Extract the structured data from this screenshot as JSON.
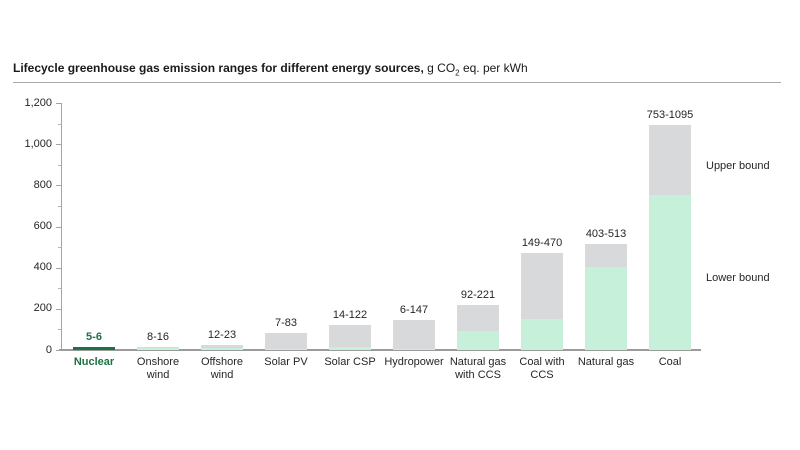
{
  "title": {
    "main": "Lifecycle greenhouse gas emission ranges for different energy sources,",
    "unit_pre": " g CO",
    "unit_sub": "2",
    "unit_post": " eq. per kWh"
  },
  "chart_data": {
    "type": "bar",
    "stacked": true,
    "title": "Lifecycle greenhouse gas emission ranges for different energy sources",
    "ylabel": "g CO2 eq. per kWh",
    "ylim": [
      0,
      1200
    ],
    "yticks": [
      0,
      200,
      400,
      600,
      800,
      1000,
      1200
    ],
    "ytick_labels": [
      "0",
      "200",
      "400",
      "600",
      "800",
      "1,000",
      "1,200"
    ],
    "minor_ticks": [
      100,
      300,
      500,
      700,
      900,
      1100
    ],
    "grid": false,
    "legend": {
      "upper": "Upper bound",
      "lower": "Lower bound",
      "position": "right"
    },
    "categories": [
      {
        "label": "Nuclear",
        "lines": [
          "Nuclear"
        ],
        "lower": 5,
        "upper": 6,
        "range_label": "5-6",
        "highlight": true
      },
      {
        "label": "Onshore wind",
        "lines": [
          "Onshore",
          "wind"
        ],
        "lower": 8,
        "upper": 16,
        "range_label": "8-16",
        "highlight": false
      },
      {
        "label": "Offshore wind",
        "lines": [
          "Offshore",
          "wind"
        ],
        "lower": 12,
        "upper": 23,
        "range_label": "12-23",
        "highlight": false
      },
      {
        "label": "Solar PV",
        "lines": [
          "Solar PV"
        ],
        "lower": 7,
        "upper": 83,
        "range_label": "7-83",
        "highlight": false
      },
      {
        "label": "Solar CSP",
        "lines": [
          "Solar CSP"
        ],
        "lower": 14,
        "upper": 122,
        "range_label": "14-122",
        "highlight": false
      },
      {
        "label": "Hydropower",
        "lines": [
          "Hydropower"
        ],
        "lower": 6,
        "upper": 147,
        "range_label": "6-147",
        "highlight": false
      },
      {
        "label": "Natural gas with CCS",
        "lines": [
          "Natural gas",
          "with CCS"
        ],
        "lower": 92,
        "upper": 221,
        "range_label": "92-221",
        "highlight": false
      },
      {
        "label": "Coal with CCS",
        "lines": [
          "Coal with",
          "CCS"
        ],
        "lower": 149,
        "upper": 470,
        "range_label": "149-470",
        "highlight": false
      },
      {
        "label": "Natural gas",
        "lines": [
          "Natural gas"
        ],
        "lower": 403,
        "upper": 513,
        "range_label": "403-513",
        "highlight": false
      },
      {
        "label": "Coal",
        "lines": [
          "Coal"
        ],
        "lower": 753,
        "upper": 1095,
        "range_label": "753-1095",
        "highlight": false
      }
    ],
    "colors": {
      "lower_fill": "#c6f0d9",
      "upper_fill": "#d7d9da",
      "highlight_fill": "#1e7145",
      "highlight_text": "#1e7145",
      "axis": "#a3a3a3",
      "text": "#262626"
    }
  }
}
